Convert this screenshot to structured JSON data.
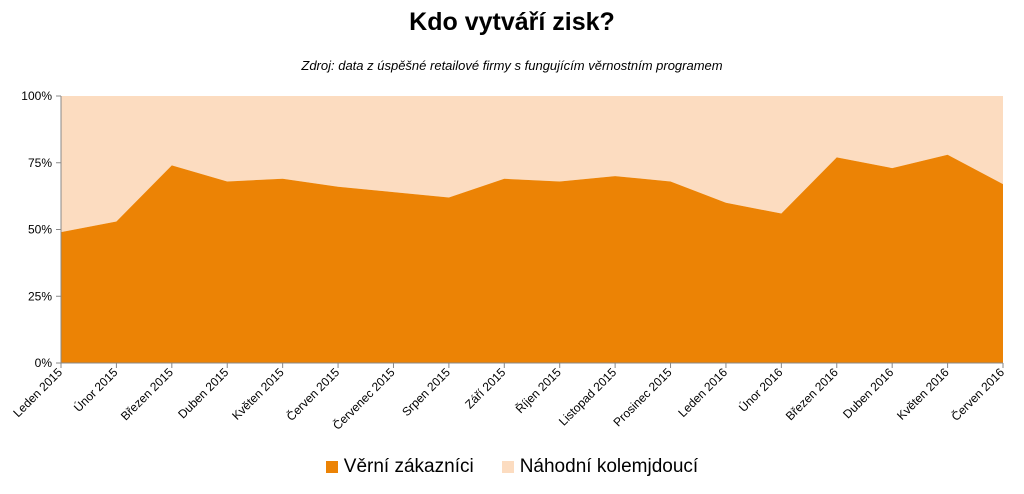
{
  "chart_data": {
    "type": "area",
    "stacked": true,
    "title": "Kdo vytváří zisk?",
    "subtitle": "Zdroj: data z úspěšné retailové firmy s fungujícím věrnostním programem",
    "categories": [
      "Leden 2015",
      "Únor 2015",
      "Březen 2015",
      "Duben 2015",
      "Květen 2015",
      "Červen 2015",
      "Červenec 2015",
      "Srpen 2015",
      "Září 2015",
      "Říjen 2015",
      "Listopad 2015",
      "Prosinec 2015",
      "Leden 2016",
      "Únor 2016",
      "Březen 2016",
      "Duben 2016",
      "Květen 2016",
      "Červen 2016"
    ],
    "series": [
      {
        "name": "Věrní zákazníci",
        "color": "#ec8305",
        "values": [
          49,
          53,
          74,
          68,
          69,
          66,
          64,
          62,
          69,
          68,
          70,
          68,
          60,
          56,
          77,
          73,
          78,
          67
        ]
      },
      {
        "name": "Náhodní kolemjdoucí",
        "color": "#fcdcc0",
        "values": [
          51,
          47,
          26,
          32,
          31,
          34,
          36,
          38,
          31,
          32,
          30,
          32,
          40,
          44,
          23,
          27,
          22,
          33
        ]
      }
    ],
    "yticks": [
      "0%",
      "25%",
      "50%",
      "75%",
      "100%"
    ],
    "ylim": [
      0,
      100
    ],
    "grid": false,
    "legend": "bottom"
  }
}
